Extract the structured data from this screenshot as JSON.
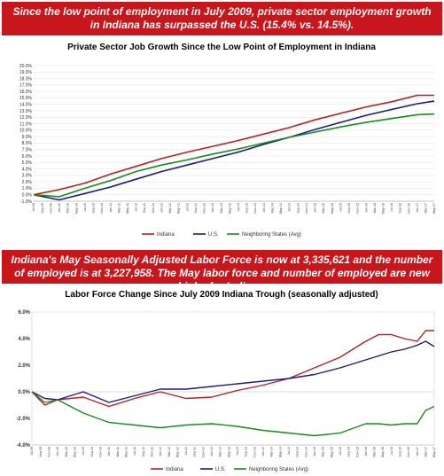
{
  "banners": {
    "top": "Since the low point of employment in July 2009, private sector employment growth in Indiana has surpassed the U.S. (15.4% vs. 14.5%).",
    "middle": "Indiana's May Seasonally Adjusted  Labor Force is now at 3,335,621 and the number of employed is at 3,227,958. The May labor force and number of employed are new highs for Indiana."
  },
  "chart_data": [
    {
      "type": "line",
      "title": "Private Sector Job Growth Since the Low Point of Employment in Indiana",
      "y_unit": "%",
      "ylim": [
        -1,
        20
      ],
      "y_ticks": [
        -1,
        0,
        1,
        2,
        3,
        4,
        5,
        6,
        7,
        8,
        9,
        10,
        11,
        12,
        13,
        14,
        15,
        16,
        17,
        18,
        19,
        20
      ],
      "x_start": "2009-07",
      "x_end": "2017-05",
      "x_label_interval_months": 2,
      "legend_position": "bottom",
      "series": [
        {
          "name": "Indiana",
          "color": "#b22222",
          "x": [
            "2009-07",
            "2010-01",
            "2010-07",
            "2011-01",
            "2011-07",
            "2012-01",
            "2012-07",
            "2013-01",
            "2013-07",
            "2014-01",
            "2014-07",
            "2015-01",
            "2015-07",
            "2016-01",
            "2016-07",
            "2017-01",
            "2017-05"
          ],
          "values": [
            0.0,
            0.8,
            1.8,
            3.2,
            4.4,
            5.6,
            6.6,
            7.5,
            8.4,
            9.4,
            10.4,
            11.6,
            12.6,
            13.6,
            14.4,
            15.4,
            15.4
          ]
        },
        {
          "name": "U.S.",
          "color": "#1c1c80",
          "x": [
            "2009-07",
            "2010-01",
            "2010-07",
            "2011-01",
            "2011-07",
            "2012-01",
            "2012-07",
            "2013-01",
            "2013-07",
            "2014-01",
            "2014-07",
            "2015-01",
            "2015-07",
            "2016-01",
            "2016-07",
            "2017-01",
            "2017-05"
          ],
          "values": [
            0.0,
            -0.8,
            0.2,
            1.2,
            2.4,
            3.6,
            4.6,
            5.6,
            6.6,
            7.8,
            8.9,
            10.1,
            11.2,
            12.3,
            13.2,
            14.1,
            14.5
          ]
        },
        {
          "name": "Neighboring States (Avg)",
          "color": "#1a8a1a",
          "x": [
            "2009-07",
            "2010-01",
            "2010-07",
            "2011-01",
            "2011-07",
            "2012-01",
            "2012-07",
            "2013-01",
            "2013-07",
            "2014-01",
            "2014-07",
            "2015-01",
            "2015-07",
            "2016-01",
            "2016-07",
            "2017-01",
            "2017-05"
          ],
          "values": [
            0.0,
            -0.3,
            1.0,
            2.2,
            3.6,
            4.6,
            5.4,
            6.3,
            7.1,
            8.0,
            8.9,
            9.7,
            10.5,
            11.2,
            11.8,
            12.4,
            12.5
          ]
        }
      ]
    },
    {
      "type": "line",
      "title": "Labor Force Change Since July 2009 Indiana Trough (seasonally adjusted)",
      "y_unit": "%",
      "ylim": [
        -4,
        6
      ],
      "y_ticks": [
        -4,
        -2,
        0,
        2,
        4,
        6
      ],
      "x_start": "2009-07",
      "x_end": "2017-05",
      "x_label_interval_months": 2,
      "legend_position": "bottom",
      "series": [
        {
          "name": "Indiana",
          "color": "#b22222",
          "x": [
            "2009-07",
            "2009-10",
            "2010-01",
            "2010-07",
            "2011-01",
            "2011-07",
            "2012-01",
            "2012-07",
            "2013-01",
            "2013-07",
            "2014-01",
            "2014-07",
            "2015-01",
            "2015-07",
            "2016-01",
            "2016-04",
            "2016-07",
            "2016-10",
            "2017-01",
            "2017-03",
            "2017-05"
          ],
          "values": [
            0.0,
            -1.0,
            -0.6,
            -0.4,
            -1.1,
            -0.5,
            0.0,
            -0.5,
            -0.4,
            0.1,
            0.5,
            1.0,
            1.8,
            2.6,
            3.8,
            4.3,
            4.3,
            4.0,
            3.8,
            4.6,
            4.6
          ]
        },
        {
          "name": "U.S.",
          "color": "#1c1c80",
          "x": [
            "2009-07",
            "2009-10",
            "2010-01",
            "2010-07",
            "2011-01",
            "2011-07",
            "2012-01",
            "2012-07",
            "2013-01",
            "2013-07",
            "2014-01",
            "2014-07",
            "2015-01",
            "2015-07",
            "2016-01",
            "2016-04",
            "2016-07",
            "2016-10",
            "2017-01",
            "2017-03",
            "2017-05"
          ],
          "values": [
            0.0,
            -0.5,
            -0.6,
            0.0,
            -0.8,
            -0.3,
            0.2,
            0.2,
            0.4,
            0.6,
            0.8,
            1.0,
            1.3,
            1.8,
            2.4,
            2.7,
            3.0,
            3.2,
            3.5,
            3.8,
            3.4
          ]
        },
        {
          "name": "Neighboring States (Avg)",
          "color": "#1a8a1a",
          "x": [
            "2009-07",
            "2009-10",
            "2010-01",
            "2010-07",
            "2011-01",
            "2011-07",
            "2012-01",
            "2012-07",
            "2013-01",
            "2013-07",
            "2014-01",
            "2014-07",
            "2015-01",
            "2015-07",
            "2016-01",
            "2016-04",
            "2016-07",
            "2016-10",
            "2017-01",
            "2017-03",
            "2017-05"
          ],
          "values": [
            0.0,
            -0.8,
            -0.6,
            -1.6,
            -2.3,
            -2.5,
            -2.7,
            -2.5,
            -2.4,
            -2.6,
            -2.9,
            -3.1,
            -3.3,
            -3.1,
            -2.4,
            -2.4,
            -2.5,
            -2.4,
            -2.4,
            -1.4,
            -1.1
          ]
        }
      ]
    }
  ]
}
